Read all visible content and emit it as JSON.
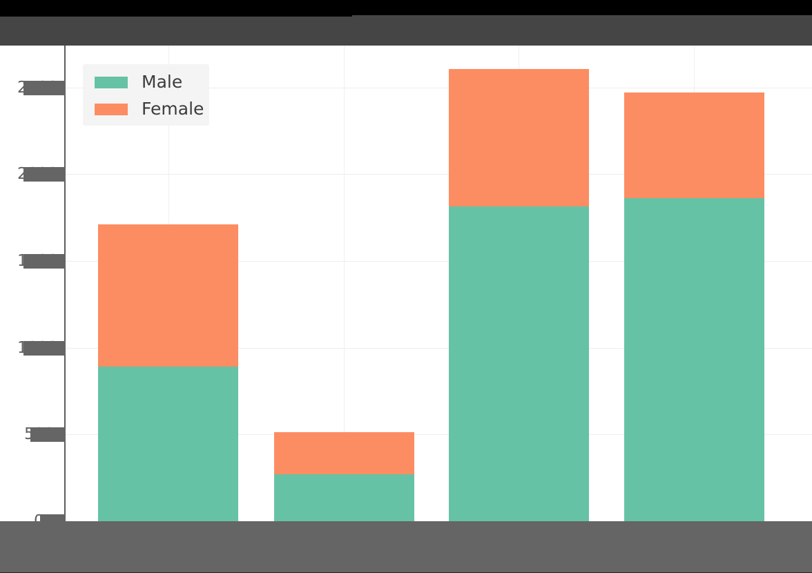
{
  "window": {
    "top_strip_color": "#000000",
    "title_redaction_bar_color": "#454545",
    "xaxis_redaction_bar_color": "#656565",
    "background_color": "#ffffff"
  },
  "chart_data": {
    "type": "bar",
    "stacked": true,
    "categories": [
      "",
      "",
      "",
      ""
    ],
    "series": [
      {
        "name": "Male",
        "color": "#66c2a5",
        "values": [
          890,
          270,
          1815,
          1860
        ]
      },
      {
        "name": "Female",
        "color": "#fc8d62",
        "values": [
          820,
          245,
          790,
          610
        ]
      }
    ],
    "ylim": [
      0,
      2735
    ],
    "yticks": [
      0,
      500,
      1000,
      1500,
      2000,
      2500
    ],
    "ytick_labels": [
      "0",
      "500",
      "1000",
      "1500",
      "2000",
      "2500"
    ],
    "grid": true,
    "gridline_color": "#ededed",
    "axis_line_color": "#5c5c5c",
    "legend_position": "upper-left",
    "legend_background": "#f4f4f4"
  },
  "legend": {
    "items": [
      {
        "label": "Male",
        "swatch_color": "#66c2a5"
      },
      {
        "label": "Female",
        "swatch_color": "#fc8d62"
      }
    ]
  },
  "redactions": {
    "title_covered": true,
    "x_axis_labels_covered": true,
    "ytick_labels_partially_covered": true,
    "ytick_visible_fragments": [
      "2",
      "2",
      "1",
      "1",
      "5",
      "0"
    ]
  }
}
